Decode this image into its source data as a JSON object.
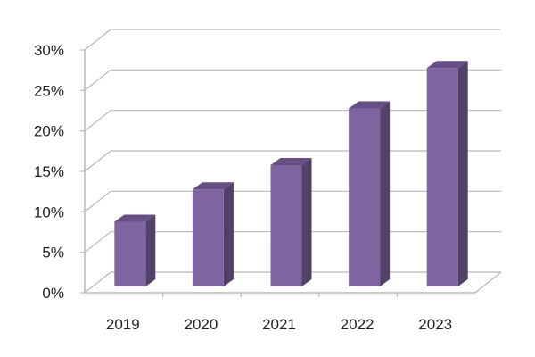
{
  "chart_data": {
    "type": "bar",
    "title": "",
    "xlabel": "",
    "ylabel": "",
    "categories": [
      "2019",
      "2020",
      "2021",
      "2022",
      "2023"
    ],
    "values": [
      8,
      12,
      15,
      22,
      27
    ],
    "value_unit": "%",
    "ylim": [
      0,
      30
    ],
    "yticks": [
      "0%",
      "5%",
      "10%",
      "15%",
      "20%",
      "25%",
      "30%"
    ],
    "grid": true,
    "legend": "none",
    "style": "3d-column",
    "colors": {
      "front": "#8064A2",
      "side": "#534168",
      "top": "#654f84",
      "grid": "#b8b8b8"
    }
  }
}
